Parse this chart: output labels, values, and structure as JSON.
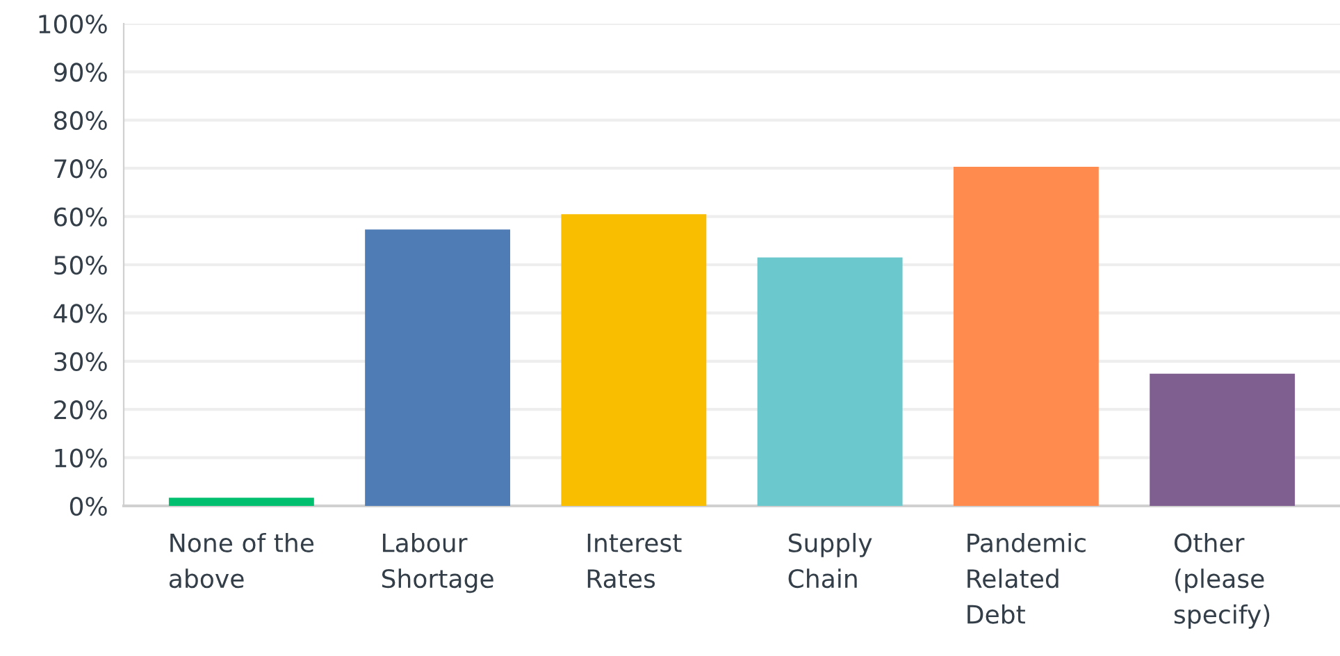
{
  "chart_data": {
    "type": "bar",
    "categories": [
      "None of the above",
      "Labour Shortage",
      "Interest Rates",
      "Supply Chain",
      "Pandemic Related Debt",
      "Other (please specify)"
    ],
    "values": [
      1.7,
      57.3,
      60.5,
      51.5,
      70.3,
      27.4
    ],
    "colors": [
      "#00bf6f",
      "#507cb6",
      "#f9be00",
      "#6bc8cd",
      "#ff8b4f",
      "#7f5f90"
    ],
    "ylim": [
      0,
      100
    ],
    "yticks": [
      {
        "value": 0,
        "label": "0%"
      },
      {
        "value": 10,
        "label": "10%"
      },
      {
        "value": 20,
        "label": "20%"
      },
      {
        "value": 30,
        "label": "30%"
      },
      {
        "value": 40,
        "label": "40%"
      },
      {
        "value": 50,
        "label": "50%"
      },
      {
        "value": 60,
        "label": "60%"
      },
      {
        "value": 70,
        "label": "70%"
      },
      {
        "value": 80,
        "label": "80%"
      },
      {
        "value": 90,
        "label": "90%"
      },
      {
        "value": 100,
        "label": "100%"
      }
    ],
    "grid": "y"
  }
}
